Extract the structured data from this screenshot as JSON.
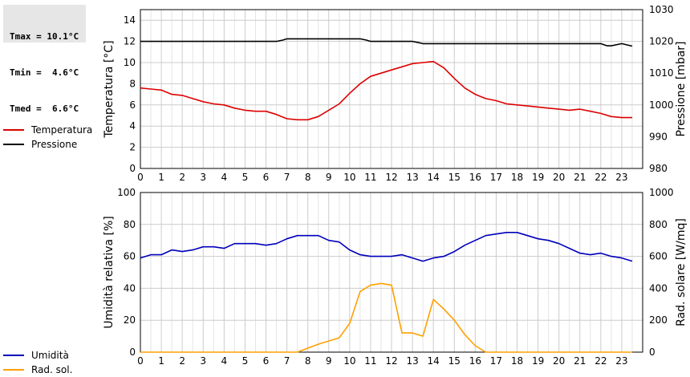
{
  "stats": [
    {
      "label": "Tmax",
      "value": "10.1°C"
    },
    {
      "label": "Tmin",
      "value": "4.6°C"
    },
    {
      "label": "Tmed",
      "value": "6.6°C"
    }
  ],
  "colors": {
    "temperatura": "#dd0000",
    "pressione": "#000000",
    "umidita": "#0000bb",
    "rad": "#ffa000",
    "grid": "#cccccc"
  },
  "chart_data": [
    {
      "type": "line",
      "x_ticks": [
        "0",
        "1",
        "2",
        "3",
        "4",
        "5",
        "6",
        "7",
        "8",
        "9",
        "10",
        "11",
        "12",
        "13",
        "14",
        "15",
        "16",
        "17",
        "18",
        "19",
        "20",
        "21",
        "22",
        "23"
      ],
      "xlim": [
        0,
        24
      ],
      "ylabel": "Temperatura [°C]",
      "ylim": [
        0,
        15
      ],
      "y_ticks": [
        "0",
        "2",
        "4",
        "6",
        "8",
        "10",
        "12",
        "14"
      ],
      "y2label": "Pressione [mbar]",
      "y2lim": [
        980,
        1030
      ],
      "y2_ticks": [
        "980",
        "990",
        "1000",
        "1010",
        "1020",
        "1030"
      ],
      "legend": [
        "Temperatura",
        "Pressione"
      ],
      "grid": true,
      "series": [
        {
          "name": "Temperatura",
          "axis": "left",
          "x": [
            0,
            0.5,
            1,
            1.5,
            2,
            2.5,
            3,
            3.5,
            4,
            4.5,
            5,
            5.5,
            6,
            6.5,
            7,
            7.5,
            8,
            8.5,
            9,
            9.5,
            10,
            10.5,
            11,
            11.5,
            12,
            12.5,
            13,
            13.5,
            14,
            14.5,
            15,
            15.5,
            16,
            16.5,
            17,
            17.5,
            18,
            18.5,
            19,
            19.5,
            20,
            20.5,
            21,
            21.5,
            22,
            22.5,
            23,
            23.5
          ],
          "y": [
            7.6,
            7.5,
            7.4,
            7.0,
            6.9,
            6.6,
            6.3,
            6.1,
            6.0,
            5.7,
            5.5,
            5.4,
            5.4,
            5.1,
            4.7,
            4.6,
            4.6,
            4.9,
            5.5,
            6.1,
            7.1,
            8.0,
            8.7,
            9.0,
            9.3,
            9.6,
            9.9,
            10.0,
            10.1,
            9.5,
            8.5,
            7.6,
            7.0,
            6.6,
            6.4,
            6.1,
            6.0,
            5.9,
            5.8,
            5.7,
            5.6,
            5.5,
            5.6,
            5.4,
            5.2,
            4.9,
            4.8,
            4.8
          ]
        },
        {
          "name": "Pressione",
          "axis": "right",
          "x": [
            0,
            6.5,
            6.8,
            7,
            10.5,
            10.8,
            11,
            13,
            13.3,
            13.5,
            22,
            22.3,
            22.5,
            23,
            23.5
          ],
          "y": [
            1020,
            1020,
            1020.4,
            1020.8,
            1020.8,
            1020.4,
            1020,
            1020,
            1019.6,
            1019.3,
            1019.3,
            1018.6,
            1018.6,
            1019.3,
            1018.5
          ]
        }
      ]
    },
    {
      "type": "line",
      "x_ticks": [
        "0",
        "1",
        "2",
        "3",
        "4",
        "5",
        "6",
        "7",
        "8",
        "9",
        "10",
        "11",
        "12",
        "13",
        "14",
        "15",
        "16",
        "17",
        "18",
        "19",
        "20",
        "21",
        "22",
        "23"
      ],
      "xlim": [
        0,
        24
      ],
      "ylabel": "Umidità relativa [%]",
      "ylim": [
        0,
        100
      ],
      "y_ticks": [
        "0",
        "20",
        "40",
        "60",
        "80",
        "100"
      ],
      "y2label": "Rad. solare [W/mq]",
      "y2lim": [
        0,
        1000
      ],
      "y2_ticks": [
        "0",
        "200",
        "400",
        "600",
        "800",
        "1000"
      ],
      "legend": [
        "Umidità",
        "Rad. sol."
      ],
      "grid": true,
      "series": [
        {
          "name": "Umidità",
          "axis": "left",
          "x": [
            0,
            0.5,
            1,
            1.5,
            2,
            2.5,
            3,
            3.5,
            4,
            4.5,
            5,
            5.5,
            6,
            6.5,
            7,
            7.5,
            8,
            8.5,
            9,
            9.5,
            10,
            10.5,
            11,
            11.5,
            12,
            12.5,
            13,
            13.5,
            14,
            14.5,
            15,
            15.5,
            16,
            16.5,
            17,
            17.5,
            18,
            18.5,
            19,
            19.5,
            20,
            20.5,
            21,
            21.5,
            22,
            22.5,
            23,
            23.5
          ],
          "y": [
            59,
            61,
            61,
            64,
            63,
            64,
            66,
            66,
            65,
            68,
            68,
            68,
            67,
            68,
            71,
            73,
            73,
            73,
            70,
            69,
            64,
            61,
            60,
            60,
            60,
            61,
            59,
            57,
            59,
            60,
            63,
            67,
            70,
            73,
            74,
            75,
            75,
            73,
            71,
            70,
            68,
            65,
            62,
            61,
            62,
            60,
            59,
            57
          ]
        },
        {
          "name": "Rad. sol.",
          "axis": "right",
          "x": [
            0,
            7.5,
            8,
            8.5,
            9,
            9.5,
            10,
            10.5,
            11,
            11.5,
            12,
            12.5,
            13,
            13.5,
            14,
            14.5,
            15,
            15.5,
            16,
            16.5,
            17,
            23.5
          ],
          "y": [
            0,
            0,
            25,
            50,
            70,
            90,
            180,
            380,
            420,
            430,
            420,
            120,
            120,
            100,
            330,
            270,
            200,
            110,
            40,
            0,
            0,
            0
          ]
        }
      ]
    }
  ]
}
